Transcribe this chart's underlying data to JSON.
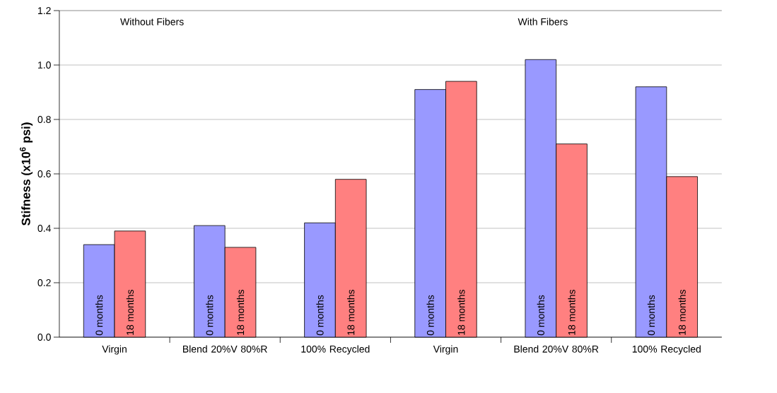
{
  "chart_data": {
    "type": "bar",
    "ylabel": "Stifness (x10$^{6}$ psi)",
    "categories": [
      "Virgin",
      "Blend 20%V 80%R",
      "100% Recycled",
      "Virgin",
      "Blend 20%V 80%R",
      "100% Recycled"
    ],
    "series": [
      {
        "name": "0 months",
        "color": "#9999ff",
        "values": [
          0.34,
          0.41,
          0.42,
          0.91,
          1.02,
          0.92
        ]
      },
      {
        "name": "18 months",
        "color": "#ff8080",
        "values": [
          0.39,
          0.33,
          0.58,
          0.94,
          0.71,
          0.59
        ]
      }
    ],
    "ylim": [
      0,
      1.2
    ],
    "yticks": [
      {
        "value": 0,
        "label": "0.0"
      },
      {
        "value": 0.2,
        "label": "0.2"
      },
      {
        "value": 0.4,
        "label": "0.4"
      },
      {
        "value": 0.6,
        "label": "0.6"
      },
      {
        "value": 0.8,
        "label": "0.8"
      },
      {
        "value": 1.0,
        "label": "1.0"
      },
      {
        "value": 1.2,
        "label": "1.2"
      }
    ],
    "grid": "y",
    "annotations": [
      "Without Fibers",
      "With Fibers"
    ]
  }
}
